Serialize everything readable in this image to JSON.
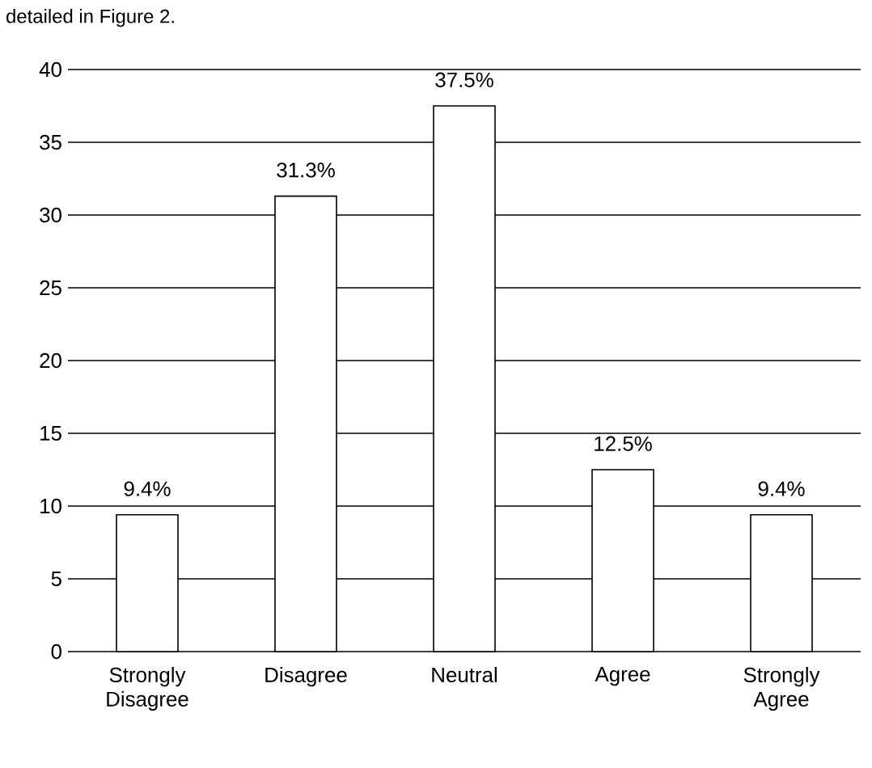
{
  "chart_data": {
    "type": "bar",
    "categories": [
      "Strongly Disagree",
      "Disagree",
      "Neutral",
      "Agree",
      "Strongly Agree"
    ],
    "values": [
      9.4,
      31.3,
      37.5,
      12.5,
      9.4
    ],
    "value_labels": [
      "9.4%",
      "31.3%",
      "37.5%",
      "12.5%",
      "9.4%"
    ],
    "color": "#ffffff",
    "ylim": [
      0,
      40
    ],
    "yticks": [
      0,
      5,
      10,
      15,
      20,
      25,
      30,
      35,
      40
    ],
    "grid": "y",
    "annotations": [
      "detailed in Figure 2."
    ]
  }
}
